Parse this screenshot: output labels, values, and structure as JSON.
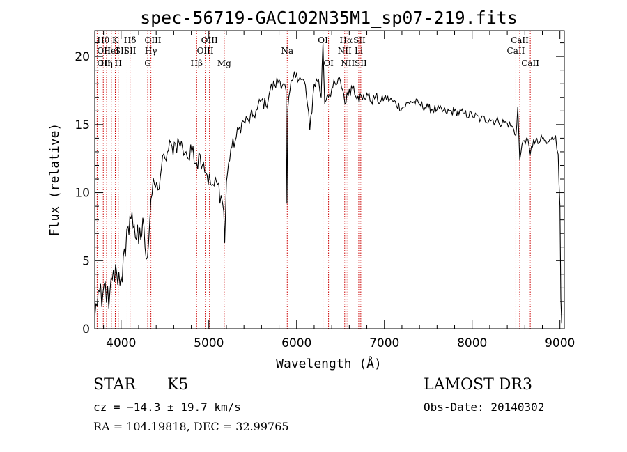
{
  "chart_data": {
    "type": "line",
    "title": "spec-56719-GAC102N35M1_sp07-219.fits",
    "xlabel": "Wavelength (Å)",
    "ylabel": "Flux (relative)",
    "xlim": [
      3700,
      9050
    ],
    "ylim": [
      0,
      21.9
    ],
    "x_ticks": [
      4000,
      5000,
      6000,
      7000,
      8000,
      9000
    ],
    "y_ticks": [
      0,
      5,
      10,
      15,
      20
    ],
    "series": [
      {
        "name": "spectrum",
        "points": [
          [
            3700,
            0.8
          ],
          [
            3740,
            2.8
          ],
          [
            3780,
            1.6
          ],
          [
            3820,
            3.4
          ],
          [
            3860,
            1.5
          ],
          [
            3900,
            3.6
          ],
          [
            3950,
            4.1
          ],
          [
            4000,
            3.8
          ],
          [
            4050,
            5.3
          ],
          [
            4080,
            7.5
          ],
          [
            4100,
            8.3
          ],
          [
            4150,
            7.6
          ],
          [
            4200,
            6.2
          ],
          [
            4260,
            7.6
          ],
          [
            4300,
            5.2
          ],
          [
            4340,
            9.5
          ],
          [
            4380,
            10.6
          ],
          [
            4420,
            10.2
          ],
          [
            4460,
            11.8
          ],
          [
            4500,
            12.5
          ],
          [
            4540,
            13.1
          ],
          [
            4580,
            13.4
          ],
          [
            4620,
            13.6
          ],
          [
            4660,
            13.7
          ],
          [
            4700,
            13.3
          ],
          [
            4740,
            13.0
          ],
          [
            4780,
            12.4
          ],
          [
            4820,
            13.4
          ],
          [
            4860,
            12.2
          ],
          [
            4900,
            12.8
          ],
          [
            4940,
            12.2
          ],
          [
            4980,
            11.3
          ],
          [
            5020,
            10.6
          ],
          [
            5060,
            10.5
          ],
          [
            5100,
            10.6
          ],
          [
            5140,
            9.8
          ],
          [
            5170,
            8.6
          ],
          [
            5180,
            6.3
          ],
          [
            5200,
            10.8
          ],
          [
            5250,
            13.2
          ],
          [
            5300,
            13.8
          ],
          [
            5350,
            14.8
          ],
          [
            5400,
            15.2
          ],
          [
            5450,
            15.3
          ],
          [
            5500,
            15.6
          ],
          [
            5550,
            16.1
          ],
          [
            5600,
            16.8
          ],
          [
            5650,
            16.4
          ],
          [
            5700,
            17.6
          ],
          [
            5750,
            17.9
          ],
          [
            5800,
            18.3
          ],
          [
            5850,
            18.0
          ],
          [
            5880,
            17.5
          ],
          [
            5890,
            9.2
          ],
          [
            5900,
            16.2
          ],
          [
            5950,
            18.2
          ],
          [
            6000,
            18.8
          ],
          [
            6050,
            18.3
          ],
          [
            6100,
            17.9
          ],
          [
            6150,
            14.6
          ],
          [
            6200,
            18.0
          ],
          [
            6250,
            18.3
          ],
          [
            6280,
            17.0
          ],
          [
            6300,
            21.0
          ],
          [
            6320,
            16.6
          ],
          [
            6350,
            17.2
          ],
          [
            6400,
            17.6
          ],
          [
            6450,
            17.9
          ],
          [
            6500,
            18.2
          ],
          [
            6563,
            16.6
          ],
          [
            6600,
            17.6
          ],
          [
            6650,
            17.8
          ],
          [
            6700,
            17.1
          ],
          [
            6750,
            16.8
          ],
          [
            6800,
            17.3
          ],
          [
            6850,
            16.7
          ],
          [
            6900,
            17.1
          ],
          [
            6950,
            16.6
          ],
          [
            7000,
            17.0
          ],
          [
            7100,
            16.7
          ],
          [
            7200,
            16.2
          ],
          [
            7300,
            16.7
          ],
          [
            7400,
            16.5
          ],
          [
            7500,
            16.2
          ],
          [
            7600,
            16.1
          ],
          [
            7700,
            15.9
          ],
          [
            7800,
            16.0
          ],
          [
            7900,
            15.8
          ],
          [
            8000,
            15.7
          ],
          [
            8100,
            15.4
          ],
          [
            8200,
            15.4
          ],
          [
            8300,
            15.2
          ],
          [
            8400,
            15.1
          ],
          [
            8450,
            14.9
          ],
          [
            8498,
            14.2
          ],
          [
            8520,
            16.3
          ],
          [
            8542,
            12.4
          ],
          [
            8580,
            13.8
          ],
          [
            8620,
            14.0
          ],
          [
            8662,
            12.8
          ],
          [
            8700,
            13.9
          ],
          [
            8750,
            13.6
          ],
          [
            8800,
            14.0
          ],
          [
            8850,
            13.6
          ],
          [
            8900,
            13.9
          ],
          [
            8950,
            14.2
          ],
          [
            8980,
            12.8
          ],
          [
            9000,
            9.0
          ],
          [
            9010,
            2.2
          ],
          [
            9020,
            0.4
          ]
        ]
      }
    ],
    "line_markers": [
      {
        "wave": 3797,
        "label": "Hθ",
        "row": 1,
        "anchor": "middle"
      },
      {
        "wave": 3727,
        "label": "OII",
        "row": 2,
        "anchor": "start"
      },
      {
        "wave": 3727,
        "label": "OII",
        "row": 3,
        "anchor": "start"
      },
      {
        "wave": 3835,
        "label": "Hη",
        "row": 3,
        "anchor": "middle"
      },
      {
        "wave": 3889,
        "label": "HeI",
        "row": 2,
        "anchor": "middle"
      },
      {
        "wave": 3934,
        "label": "K",
        "row": 1,
        "anchor": "middle"
      },
      {
        "wave": 3968,
        "label": "H",
        "row": 3,
        "anchor": "middle"
      },
      {
        "wave": 4069,
        "label": "SII",
        "row": 2,
        "anchor": "end"
      },
      {
        "wave": 4102,
        "label": "Hδ",
        "row": 1,
        "anchor": "middle"
      },
      {
        "wave": 4102,
        "label": "SII",
        "row": 2,
        "anchor": "middle"
      },
      {
        "wave": 4304,
        "label": "G",
        "row": 3,
        "anchor": "middle"
      },
      {
        "wave": 4340,
        "label": "Hγ",
        "row": 2,
        "anchor": "middle"
      },
      {
        "wave": 4363,
        "label": "OIII",
        "row": 1,
        "anchor": "middle"
      },
      {
        "wave": 4861,
        "label": "Hβ",
        "row": 3,
        "anchor": "middle"
      },
      {
        "wave": 4959,
        "label": "OIII",
        "row": 2,
        "anchor": "middle"
      },
      {
        "wave": 5007,
        "label": "OIII",
        "row": 1,
        "anchor": "middle"
      },
      {
        "wave": 5175,
        "label": "Mg",
        "row": 3,
        "anchor": "middle"
      },
      {
        "wave": 5893,
        "label": "Na",
        "row": 2,
        "anchor": "middle"
      },
      {
        "wave": 6300,
        "label": "OI",
        "row": 1,
        "anchor": "middle"
      },
      {
        "wave": 6364,
        "label": "OI",
        "row": 3,
        "anchor": "middle"
      },
      {
        "wave": 6548,
        "label": "NII",
        "row": 2,
        "anchor": "middle"
      },
      {
        "wave": 6563,
        "label": "Hα",
        "row": 1,
        "anchor": "middle"
      },
      {
        "wave": 6583,
        "label": "NII",
        "row": 3,
        "anchor": "middle"
      },
      {
        "wave": 6708,
        "label": "Li",
        "row": 2,
        "anchor": "middle"
      },
      {
        "wave": 6716,
        "label": "SII",
        "row": 1,
        "anchor": "middle"
      },
      {
        "wave": 6731,
        "label": "SII",
        "row": 3,
        "anchor": "middle"
      },
      {
        "wave": 8498,
        "label": "CaII",
        "row": 2,
        "anchor": "middle"
      },
      {
        "wave": 8542,
        "label": "CaII",
        "row": 1,
        "anchor": "middle"
      },
      {
        "wave": 8662,
        "label": "CaII",
        "row": 3,
        "anchor": "middle"
      }
    ],
    "line_color": "#cc0000"
  },
  "info": {
    "class": "STAR",
    "subclass": "K5",
    "redshift": "cz = −14.3 ± 19.7 km/s",
    "coords": "RA = 104.19818, DEC =  32.99765",
    "survey": "LAMOST DR3",
    "obs_date": "Obs-Date: 20140302"
  }
}
